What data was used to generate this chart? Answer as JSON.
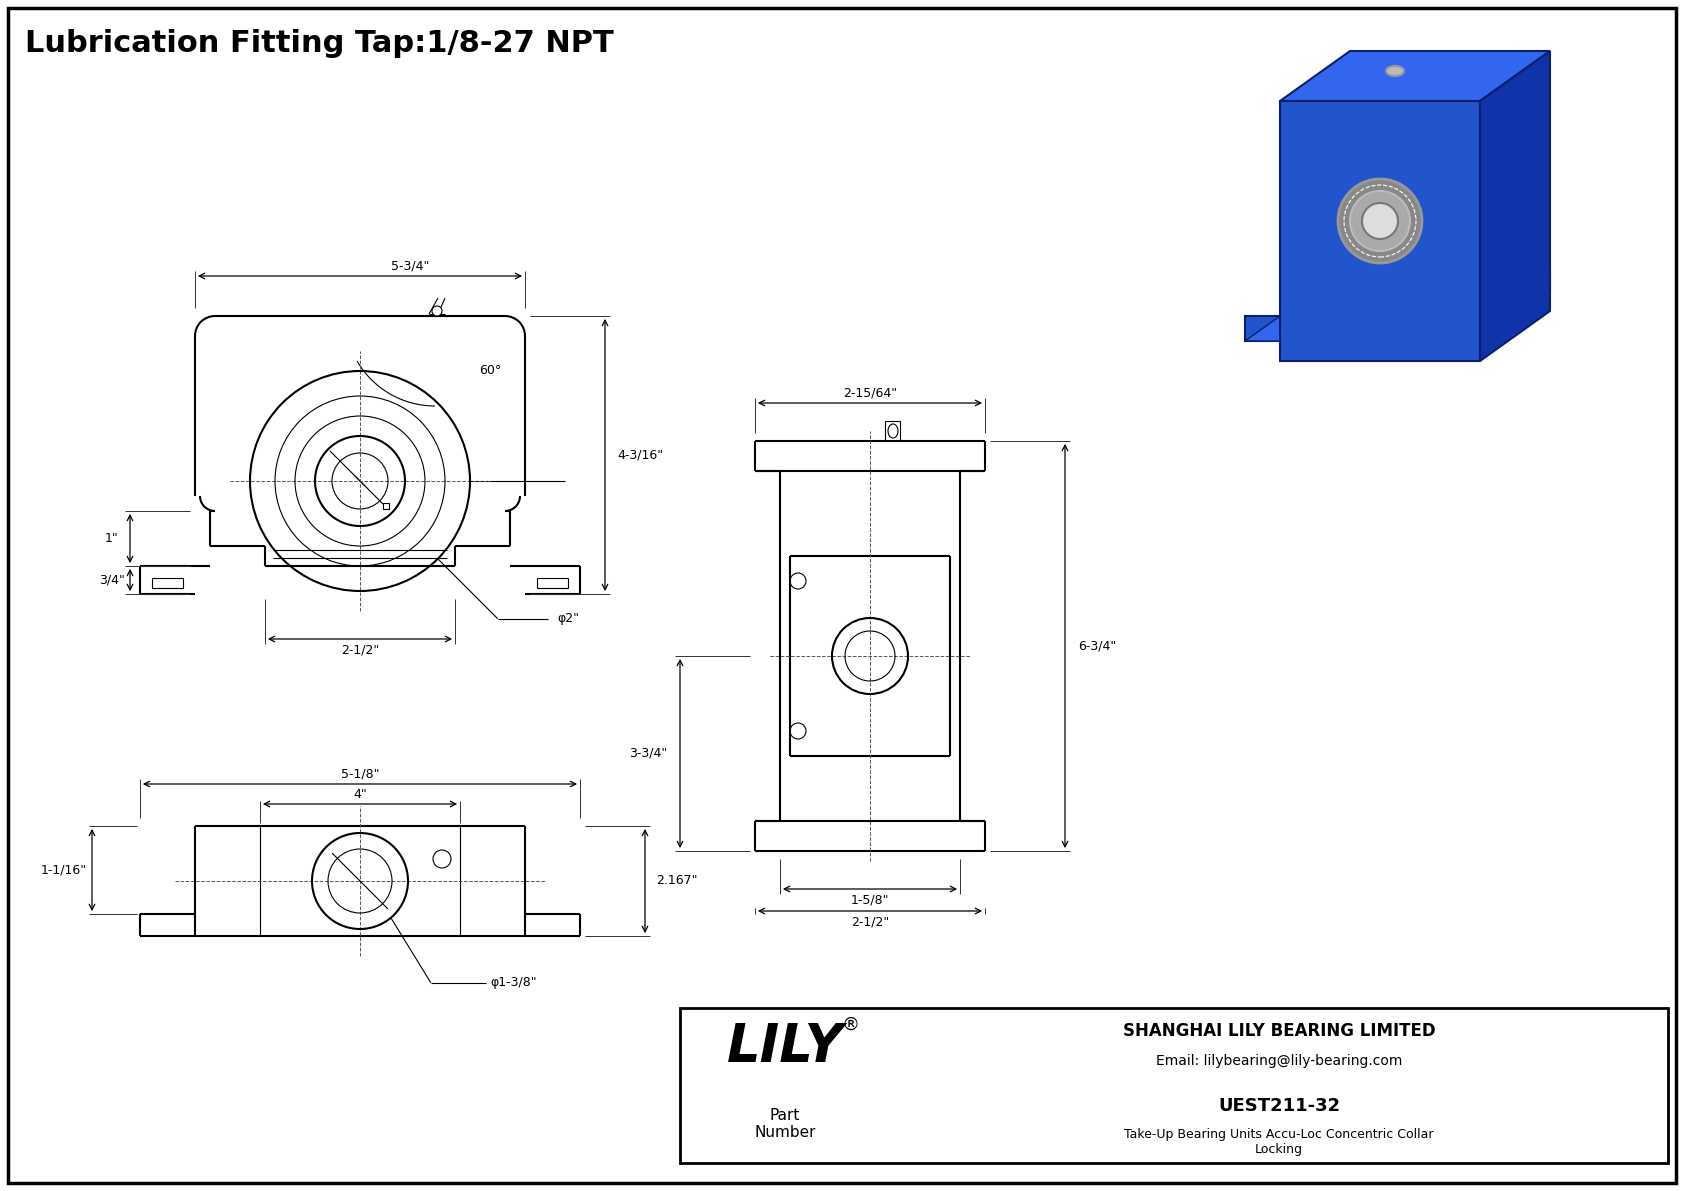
{
  "title": "Lubrication Fitting Tap:1/8-27 NPT",
  "bg_color": "#ffffff",
  "line_color": "#000000",
  "company": "SHANGHAI LILY BEARING LIMITED",
  "email": "Email: lilybearing@lily-bearing.com",
  "part_label": "Part\nNumber",
  "part_number": "UEST211-32",
  "part_desc": "Take-Up Bearing Units Accu-Loc Concentric Collar\nLocking",
  "lily_text": "LILY",
  "lily_reg": "®",
  "front_dims": {
    "top_width": "5-3/4\"",
    "height_right": "4-3/16\"",
    "width_center": "2-1/2\"",
    "height_left": "1\"",
    "height_bottom_left": "3/4\"",
    "bore_dia": "φ2\"",
    "angle_label": "60°"
  },
  "bottom_dims": {
    "outer_width": "5-1/8\"",
    "inner_width": "4\"",
    "height": "2.167\"",
    "bore_dia": "φ1-3/8\"",
    "left_dim": "1-1/16\""
  },
  "side_dims": {
    "top_width": "2-15/64\"",
    "height_total": "6-3/4\"",
    "height_middle": "3-3/4\"",
    "bottom_width1": "1-5/8\"",
    "bottom_width2": "2-1/2\""
  },
  "iso_colors": {
    "front": "#2255CC",
    "top": "#3366EE",
    "right": "#1133AA",
    "bearing_outer": "#888888",
    "bearing_mid": "#aaaaaa",
    "bearing_inner": "#dddddd",
    "edge": "#0A1F6E"
  }
}
